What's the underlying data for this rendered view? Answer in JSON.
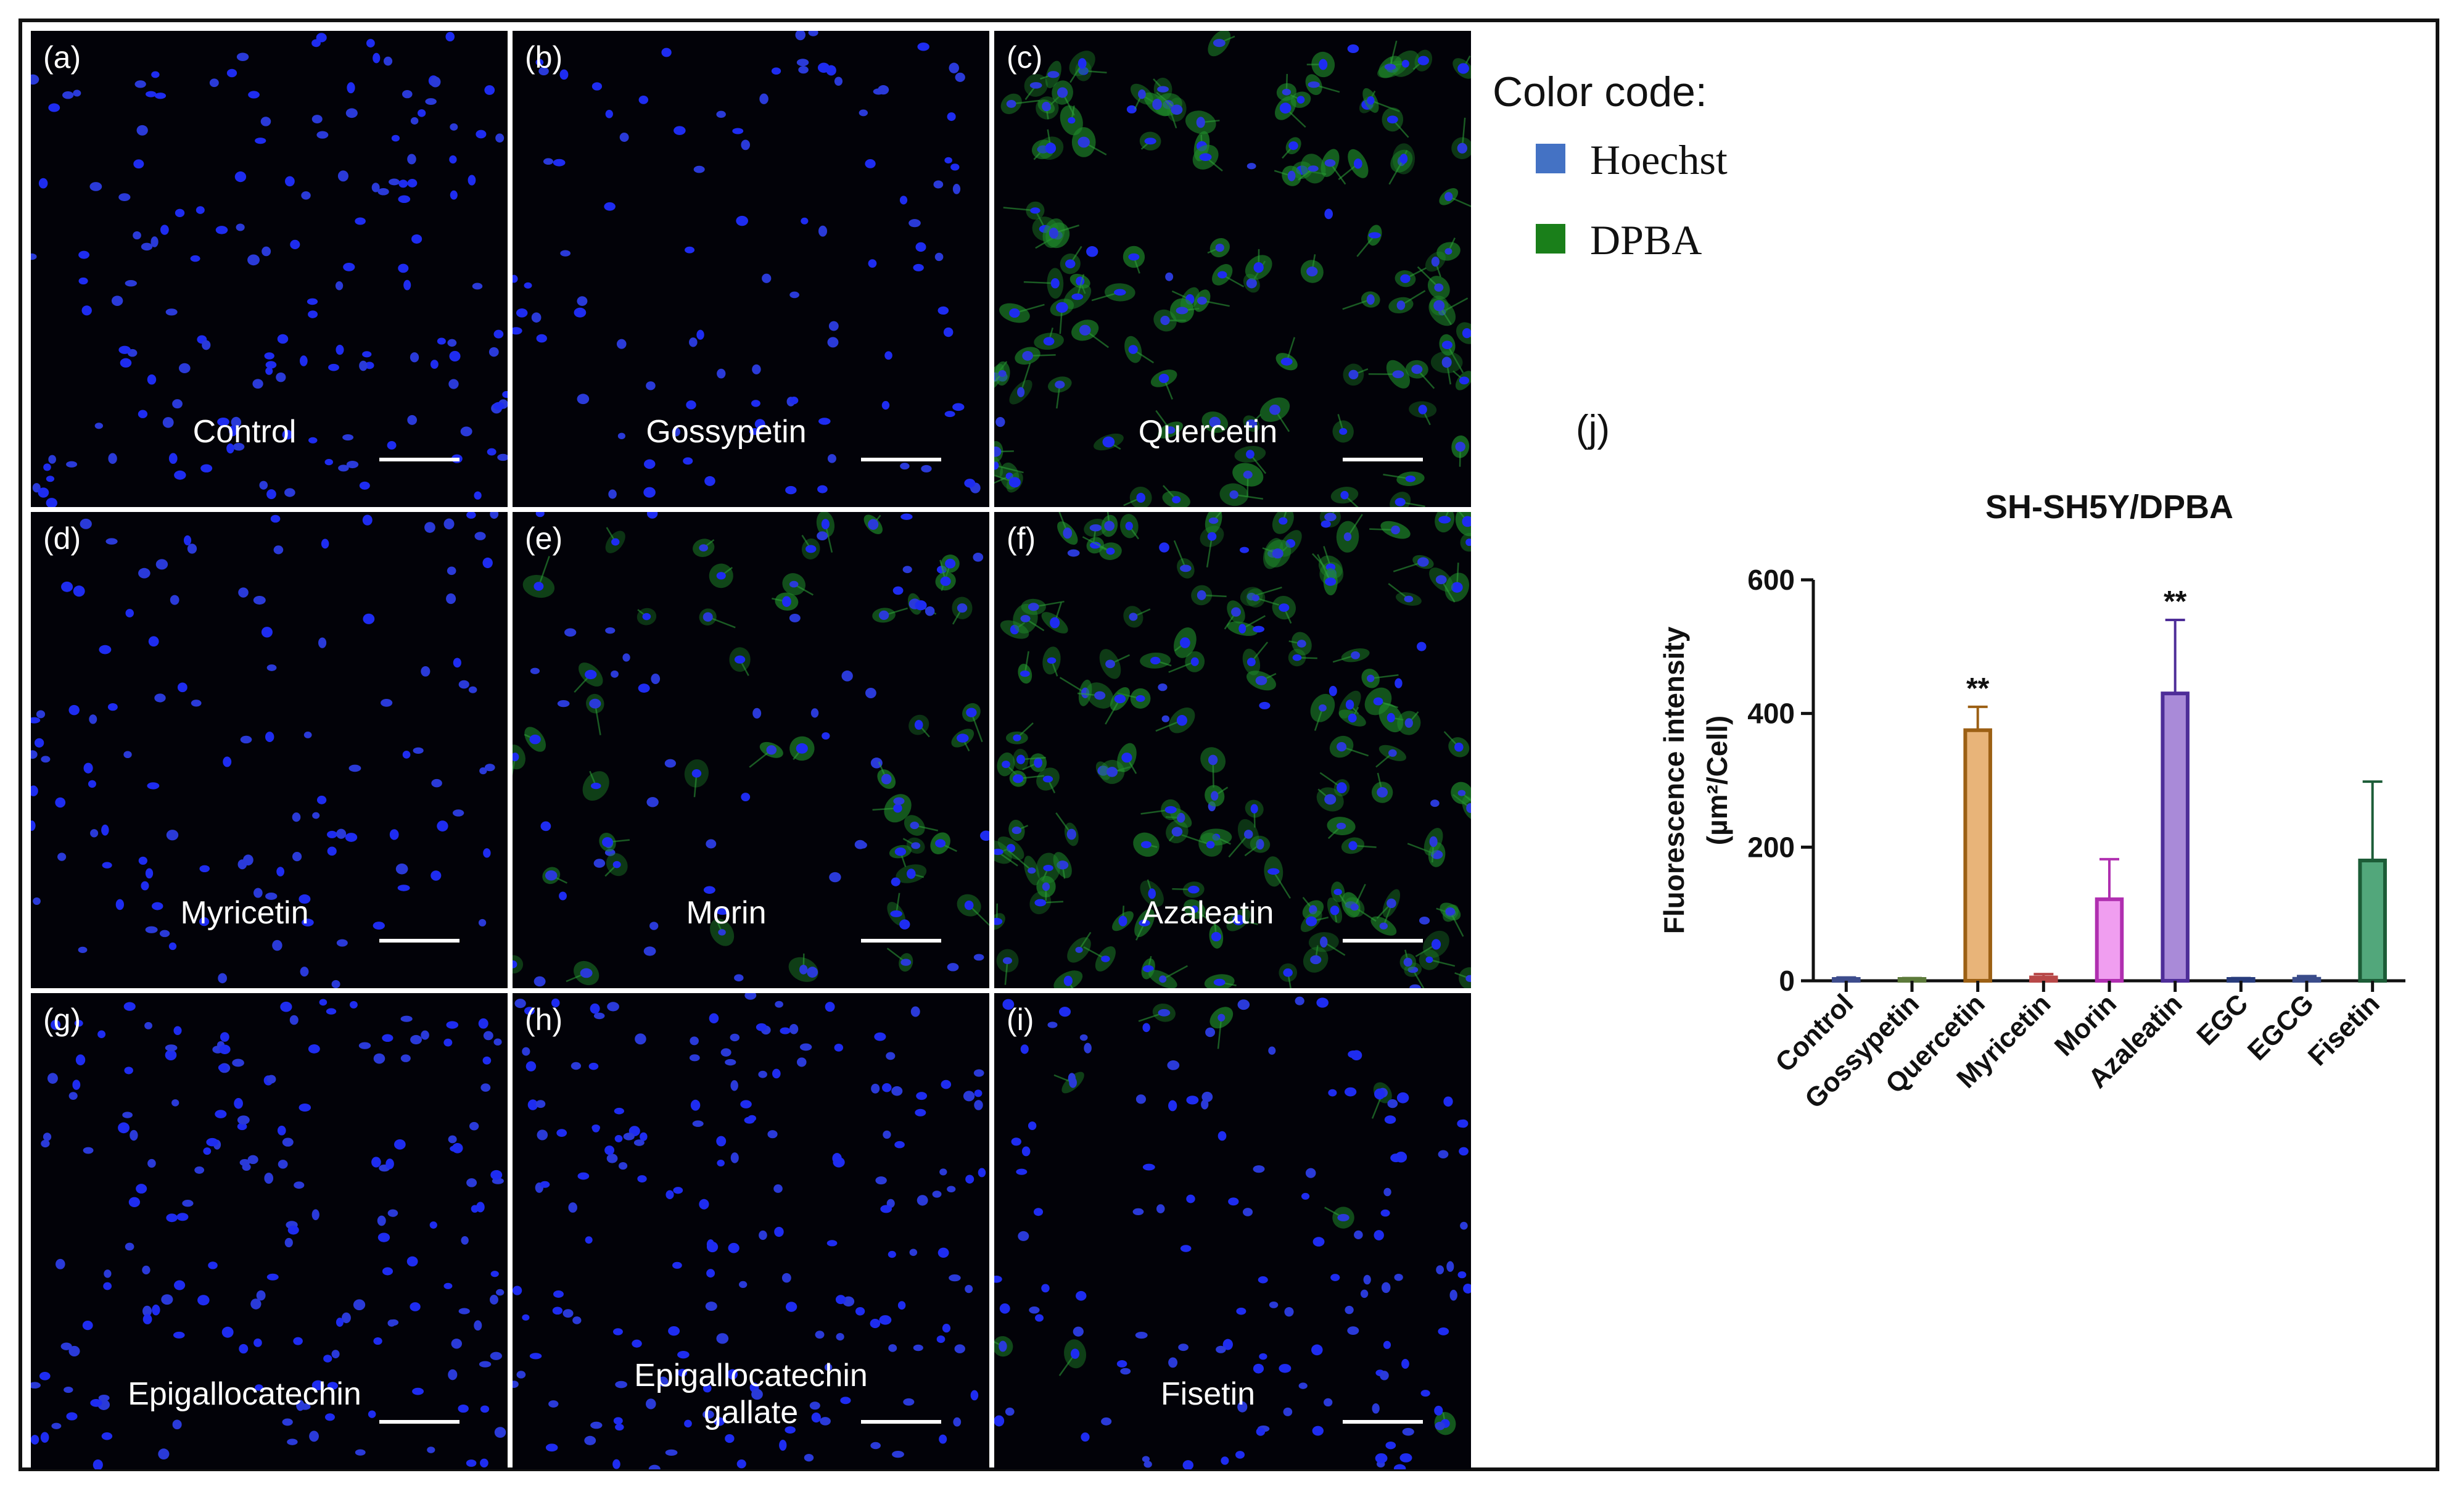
{
  "panels": [
    {
      "letter": "(a)",
      "label_lines": [
        "Control"
      ],
      "green": 0.0,
      "density": 150
    },
    {
      "letter": "(b)",
      "label_lines": [
        "Gossypetin"
      ],
      "green": 0.0,
      "density": 95
    },
    {
      "letter": "(c)",
      "label_lines": [
        "Quercetin"
      ],
      "green": 0.9,
      "density": 120
    },
    {
      "letter": "(d)",
      "label_lines": [
        "Myricetin"
      ],
      "green": 0.0,
      "density": 110
    },
    {
      "letter": "(e)",
      "label_lines": [
        "Morin"
      ],
      "green": 0.45,
      "density": 95
    },
    {
      "letter": "(f)",
      "label_lines": [
        "Azaleatin"
      ],
      "green": 0.9,
      "density": 150
    },
    {
      "letter": "(g)",
      "label_lines": [
        "Epigallocatechin"
      ],
      "green": 0.0,
      "density": 170
    },
    {
      "letter": "(h)",
      "label_lines": [
        "Epigallocatechin",
        "gallate"
      ],
      "green": 0.0,
      "density": 170
    },
    {
      "letter": "(i)",
      "label_lines": [
        "Fisetin"
      ],
      "green": 0.12,
      "density": 130
    }
  ],
  "legend": {
    "title": "Color code:",
    "items": [
      {
        "label": "Hoechst",
        "color": "#4472c4"
      },
      {
        "label": "DPBA",
        "color": "#1a7f1a"
      }
    ]
  },
  "panel_j_letter": "(j)",
  "chart_data": {
    "type": "bar",
    "title": "SH-SH5Y/DPBA",
    "ylabel": "Fluorescence intensity",
    "ylabel_unit": "(µm²/Cell)",
    "ylim": [
      0,
      600
    ],
    "yticks": [
      0,
      200,
      400,
      600
    ],
    "categories": [
      "Control",
      "Gossypetin",
      "Quercetin",
      "Myricetin",
      "Morin",
      "Azaleatin",
      "EGC",
      "EGCG",
      "Fisetin"
    ],
    "values": [
      2,
      2,
      375,
      5,
      122,
      430,
      2,
      3,
      180
    ],
    "errors": [
      3,
      2,
      35,
      5,
      60,
      110,
      2,
      4,
      118
    ],
    "significance": [
      "",
      "",
      "**",
      "",
      "",
      "**",
      "",
      "",
      ""
    ],
    "fill_colors": [
      "#d7def5",
      "#dbe7cf",
      "#e8b479",
      "#f1c6c6",
      "#f09ef0",
      "#a98ad8",
      "#c7cfe9",
      "#d0d5ea",
      "#52a77b"
    ],
    "edge_colors": [
      "#3d4c8c",
      "#5c7a3a",
      "#9c6014",
      "#b84848",
      "#b02fb0",
      "#4e2d98",
      "#283c7c",
      "#3a4c8a",
      "#1c5c37"
    ]
  }
}
